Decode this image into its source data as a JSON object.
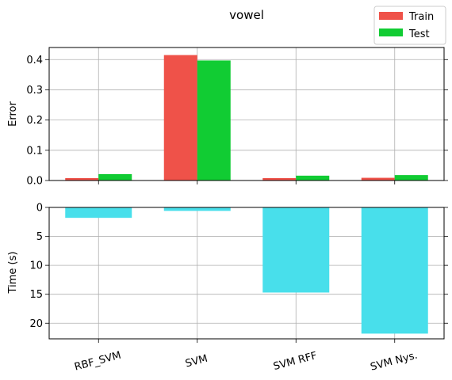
{
  "chart_data": [
    {
      "type": "bar",
      "title": "vowel",
      "xlabel": "",
      "ylabel": "Error",
      "categories": [
        "RBF_SVM",
        "SVM",
        "SVM RFF",
        "SVM Nys."
      ],
      "series": [
        {
          "name": "Train",
          "color": "#ef5249",
          "values": [
            0.008,
            0.415,
            0.008,
            0.009
          ]
        },
        {
          "name": "Test",
          "color": "#11cc33",
          "values": [
            0.021,
            0.397,
            0.016,
            0.018
          ]
        }
      ],
      "ylim": [
        0,
        0.44
      ],
      "yticks": [
        0.0,
        0.1,
        0.2,
        0.3,
        0.4
      ],
      "ytick_labels": [
        "0.0",
        "0.1",
        "0.2",
        "0.3",
        "0.4"
      ],
      "grid": true,
      "legend_position": "top-right"
    },
    {
      "type": "bar",
      "title": "",
      "xlabel": "",
      "ylabel": "Time (s)",
      "categories": [
        "RBF_SVM",
        "SVM",
        "SVM RFF",
        "SVM Nys."
      ],
      "series": [
        {
          "color": "#48dfeb",
          "values": [
            1.8,
            0.6,
            14.7,
            21.8
          ]
        }
      ],
      "ylim": [
        0,
        22.7
      ],
      "y_inverted": true,
      "yticks": [
        0,
        5,
        10,
        15,
        20
      ],
      "ytick_labels": [
        "0",
        "5",
        "10",
        "15",
        "20"
      ],
      "grid": true
    }
  ]
}
